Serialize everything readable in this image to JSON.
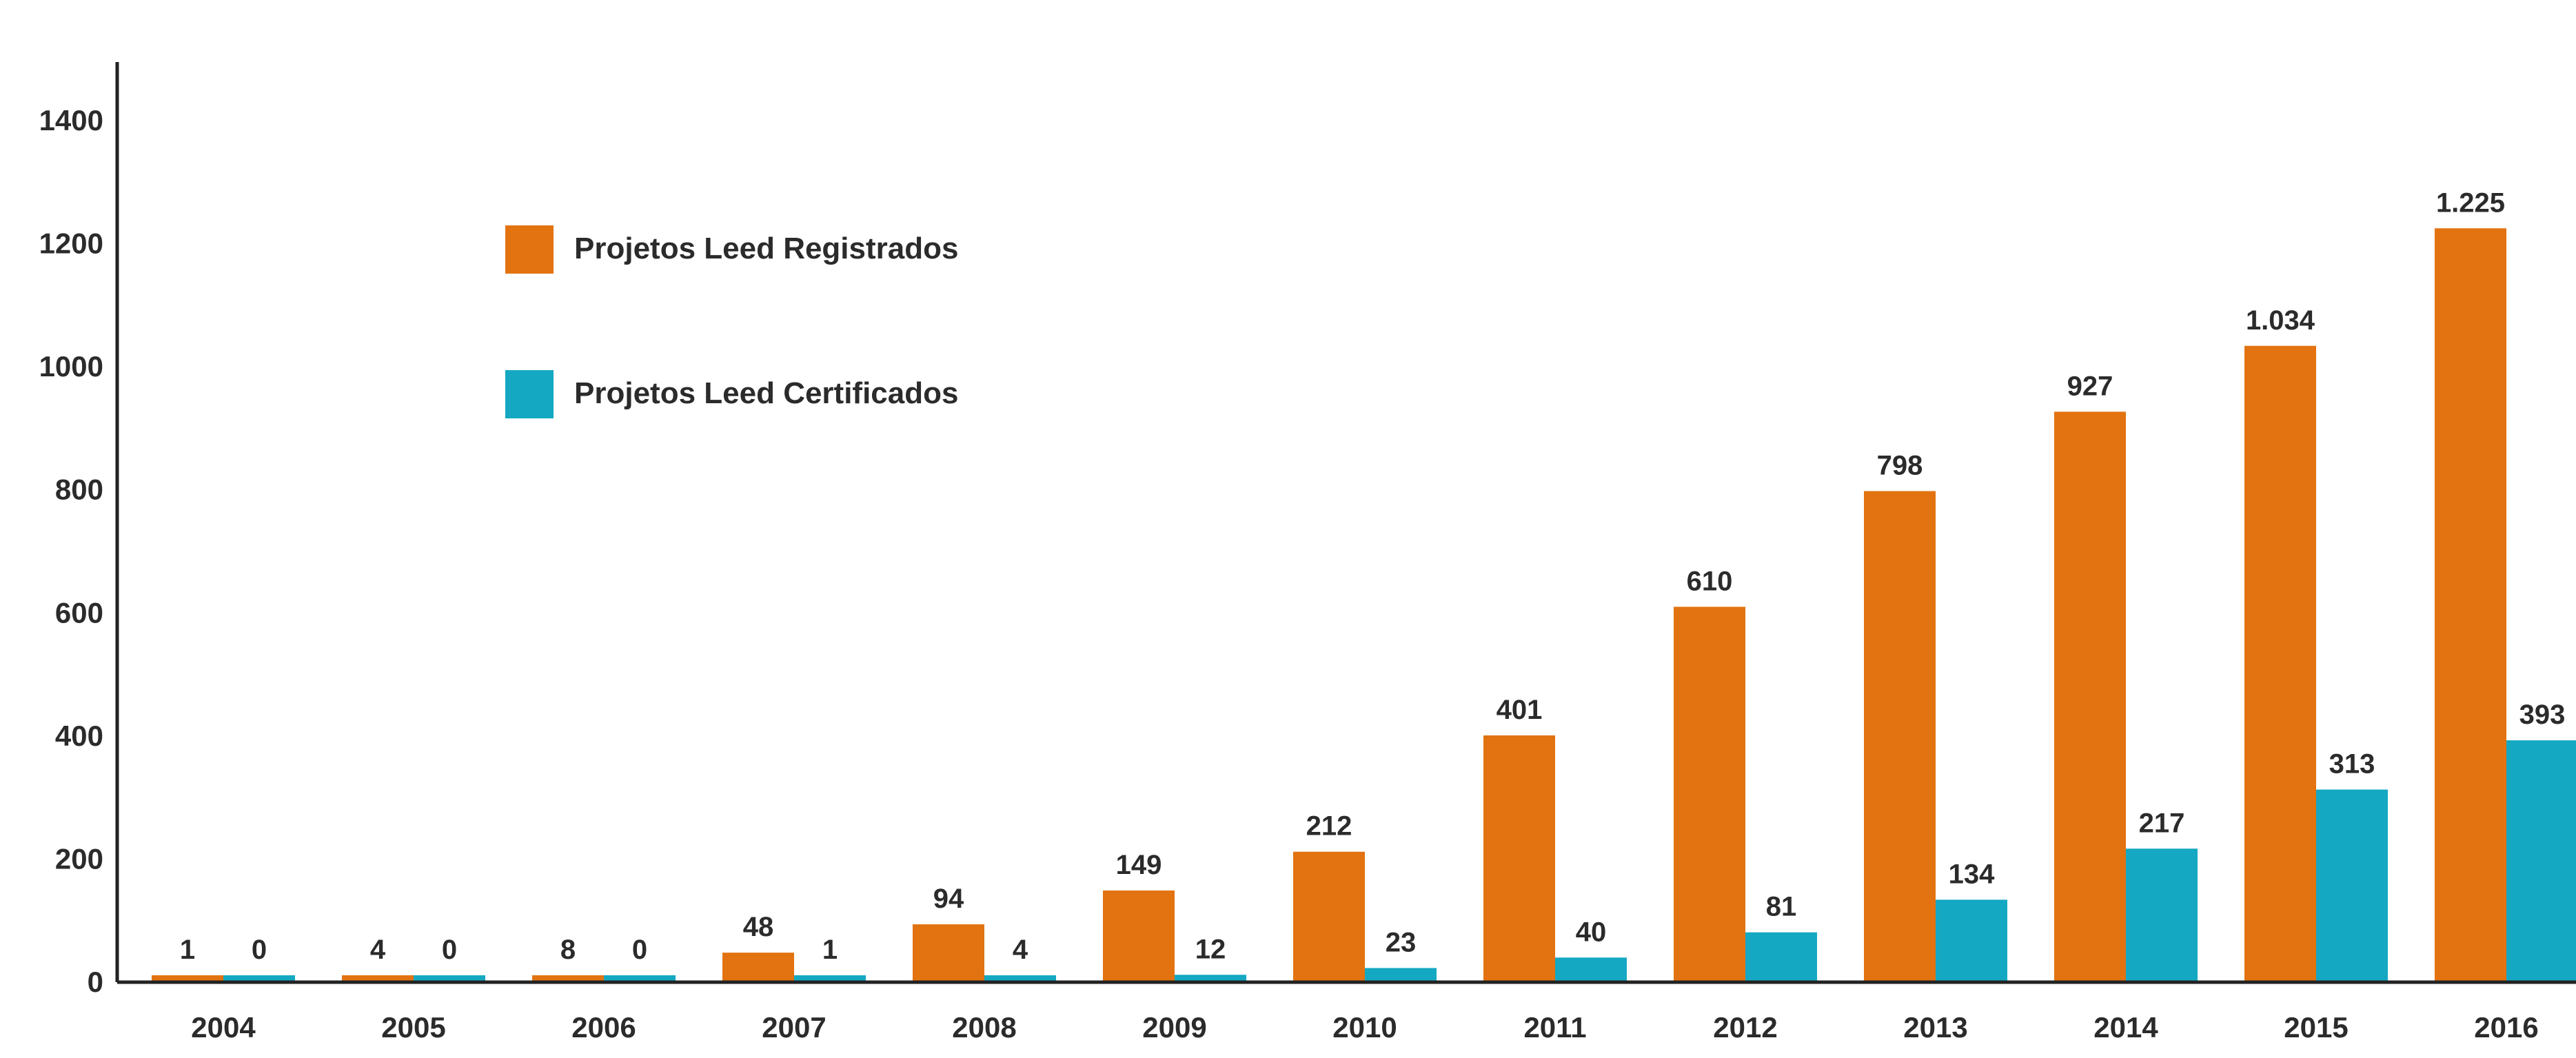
{
  "chart_data": {
    "type": "bar",
    "categories": [
      "2004",
      "2005",
      "2006",
      "2007",
      "2008",
      "2009",
      "2010",
      "2011",
      "2012",
      "2013",
      "2014",
      "2015",
      "2016"
    ],
    "series": [
      {
        "name": "Projetos Leed Registrados",
        "color": "#e27310",
        "values": [
          1,
          4,
          8,
          48,
          94,
          149,
          212,
          401,
          610,
          798,
          927,
          1034,
          1225
        ],
        "labels": [
          "1",
          "4",
          "8",
          "48",
          "94",
          "149",
          "212",
          "401",
          "610",
          "798",
          "927",
          "1.034",
          "1.225"
        ]
      },
      {
        "name": "Projetos Leed Certificados",
        "color": "#14a8c2",
        "values": [
          0,
          0,
          0,
          1,
          4,
          12,
          23,
          40,
          81,
          134,
          217,
          313,
          393
        ],
        "labels": [
          "0",
          "0",
          "0",
          "1",
          "4",
          "12",
          "23",
          "40",
          "81",
          "134",
          "217",
          "313",
          "393"
        ]
      }
    ],
    "y_ticks": [
      "0",
      "200",
      "400",
      "600",
      "800",
      "1000",
      "1200",
      "1400"
    ],
    "ylim": [
      0,
      1400
    ],
    "grid": false,
    "legend_position": "upper-left inside plot"
  }
}
